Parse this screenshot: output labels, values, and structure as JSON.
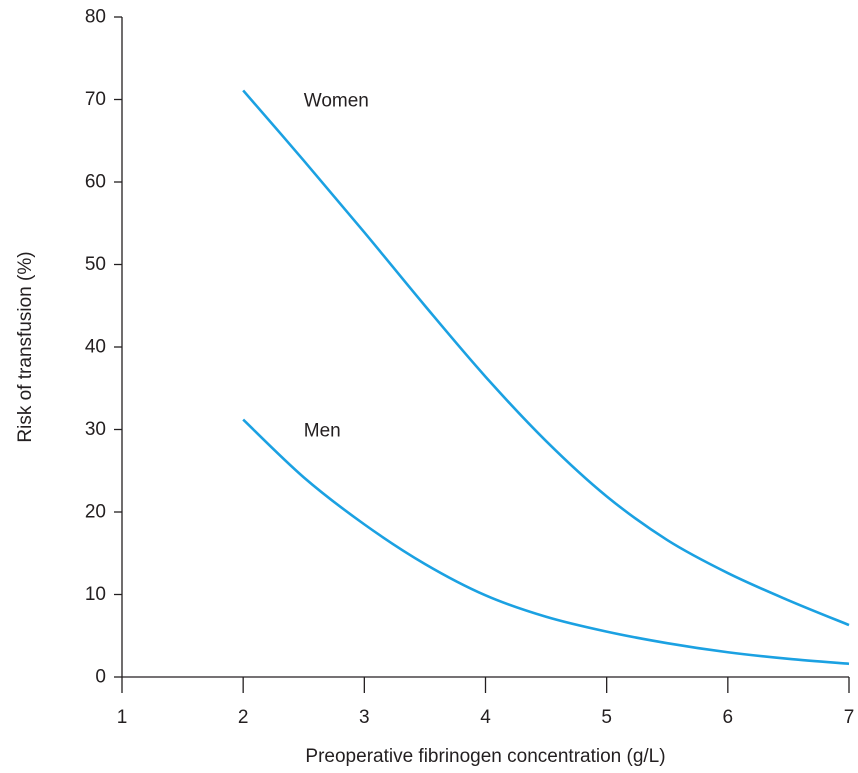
{
  "chart_data": {
    "type": "line",
    "title": "",
    "xlabel": "Preoperative fibrinogen concentration (g/L)",
    "ylabel": "Risk of transfusion (%)",
    "xlim": [
      1,
      7
    ],
    "ylim": [
      0,
      80
    ],
    "xticks": [
      1,
      2,
      3,
      4,
      5,
      6,
      7
    ],
    "xtick_labels": [
      "1",
      "2",
      "3",
      "4",
      "5",
      "6",
      "7"
    ],
    "yticks": [
      0,
      10,
      20,
      30,
      40,
      50,
      60,
      70,
      80
    ],
    "ytick_labels": [
      "0",
      "10",
      "20",
      "30",
      "40",
      "50",
      "60",
      "70",
      "80"
    ],
    "grid": false,
    "legend": "none",
    "series": [
      {
        "name": "Women",
        "color": "#1ba1e2",
        "x": [
          2,
          2.5,
          3,
          3.5,
          4,
          4.5,
          5,
          5.5,
          6,
          6.5,
          7
        ],
        "y": [
          71.1,
          62.6,
          53.9,
          45.0,
          36.4,
          28.6,
          21.9,
          16.6,
          12.6,
          9.3,
          6.3
        ]
      },
      {
        "name": "Men",
        "color": "#1ba1e2",
        "x": [
          2,
          2.5,
          3,
          3.5,
          4,
          4.5,
          5,
          5.5,
          6,
          6.5,
          7
        ],
        "y": [
          31.2,
          24.2,
          18.5,
          13.7,
          9.9,
          7.3,
          5.5,
          4.1,
          3.0,
          2.2,
          1.6
        ]
      }
    ],
    "annotations": [
      {
        "text": "Women",
        "series": "Women"
      },
      {
        "text": "Men",
        "series": "Men"
      }
    ]
  }
}
